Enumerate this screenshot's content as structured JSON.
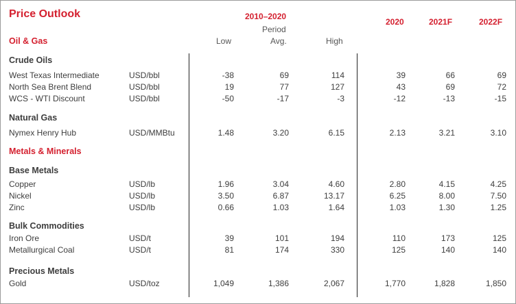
{
  "title": "Price Outlook",
  "header": {
    "period_range": "2010–2020",
    "period_label": "Period",
    "columns": [
      "Low",
      "Avg.",
      "High"
    ],
    "years": [
      "2020",
      "2021F",
      "2022F"
    ]
  },
  "sections": [
    {
      "label": "Oil & Gas",
      "groups": [
        {
          "label": "Crude Oils",
          "rows": [
            {
              "name": "West Texas Intermediate",
              "unit": "USD/bbl",
              "low": "-38",
              "avg": "69",
              "high": "114",
              "y2020": "39",
              "y2021": "66",
              "y2022": "69"
            },
            {
              "name": "North Sea Brent Blend",
              "unit": "USD/bbl",
              "low": "19",
              "avg": "77",
              "high": "127",
              "y2020": "43",
              "y2021": "69",
              "y2022": "72"
            },
            {
              "name": "WCS - WTI Discount",
              "unit": "USD/bbl",
              "low": "-50",
              "avg": "-17",
              "high": "-3",
              "y2020": "-12",
              "y2021": "-13",
              "y2022": "-15"
            }
          ]
        },
        {
          "label": "Natural Gas",
          "rows": [
            {
              "name": "Nymex Henry Hub",
              "unit": "USD/MMBtu",
              "low": "1.48",
              "avg": "3.20",
              "high": "6.15",
              "y2020": "2.13",
              "y2021": "3.21",
              "y2022": "3.10"
            }
          ]
        }
      ]
    },
    {
      "label": "Metals & Minerals",
      "groups": [
        {
          "label": "Base Metals",
          "rows": [
            {
              "name": "Copper",
              "unit": "USD/lb",
              "low": "1.96",
              "avg": "3.04",
              "high": "4.60",
              "y2020": "2.80",
              "y2021": "4.15",
              "y2022": "4.25"
            },
            {
              "name": "Nickel",
              "unit": "USD/lb",
              "low": "3.50",
              "avg": "6.87",
              "high": "13.17",
              "y2020": "6.25",
              "y2021": "8.00",
              "y2022": "7.50"
            },
            {
              "name": "Zinc",
              "unit": "USD/lb",
              "low": "0.66",
              "avg": "1.03",
              "high": "1.64",
              "y2020": "1.03",
              "y2021": "1.30",
              "y2022": "1.25"
            }
          ]
        },
        {
          "label": "Bulk Commodities",
          "rows": [
            {
              "name": "Iron Ore",
              "unit": "USD/t",
              "low": "39",
              "avg": "101",
              "high": "194",
              "y2020": "110",
              "y2021": "173",
              "y2022": "125"
            },
            {
              "name": "Metallurgical Coal",
              "unit": "USD/t",
              "low": "81",
              "avg": "174",
              "high": "330",
              "y2020": "125",
              "y2021": "140",
              "y2022": "140"
            }
          ]
        },
        {
          "label": "Precious Metals",
          "rows": [
            {
              "name": "Gold",
              "unit": "USD/toz",
              "low": "1,049",
              "avg": "1,386",
              "high": "2,067",
              "y2020": "1,770",
              "y2021": "1,828",
              "y2022": "1,850"
            }
          ]
        }
      ]
    }
  ]
}
